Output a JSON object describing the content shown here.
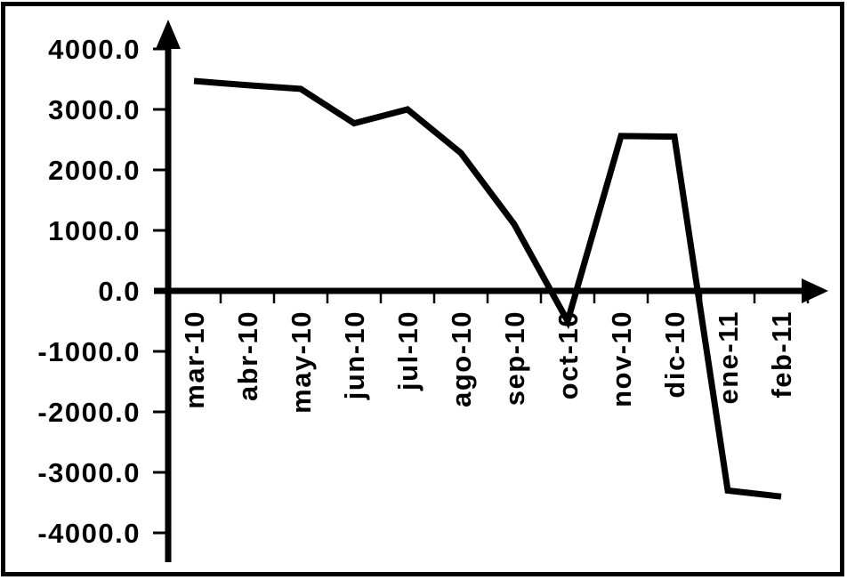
{
  "chart_data": {
    "type": "line",
    "title": "",
    "xlabel": "",
    "ylabel": "",
    "categories": [
      "mar-10",
      "abr-10",
      "may-10",
      "jun-10",
      "jul-10",
      "ago-10",
      "sep-10",
      "oct-10",
      "nov-10",
      "dic-10",
      "ene-11",
      "feb-11"
    ],
    "values": [
      3470,
      3400,
      3340,
      2770,
      3000,
      2280,
      1100,
      -500,
      2560,
      2550,
      -3300,
      -3400
    ],
    "series": [
      {
        "name": "",
        "values": [
          3470,
          3400,
          3340,
          2770,
          3000,
          2280,
          1100,
          -500,
          2560,
          2550,
          -3300,
          -3400
        ]
      }
    ],
    "ylim": [
      -4000,
      4000
    ],
    "ytick_step": 1000,
    "ytick_labels": [
      "4000.0",
      "3000.0",
      "2000.0",
      "1000.0",
      "0.0",
      "-1000.0",
      "-2000.0",
      "-3000.0",
      "-4000.0"
    ],
    "ytick_values": [
      4000,
      3000,
      2000,
      1000,
      0,
      -1000,
      -2000,
      -3000,
      -4000
    ],
    "grid": false,
    "legend": "none",
    "axes_have_arrowheads": true,
    "x_labels_vertical": true,
    "line_color": "#000000",
    "axis_color": "#000000",
    "text_color": "#000000",
    "background_color": "#ffffff",
    "border_color": "#000000"
  }
}
